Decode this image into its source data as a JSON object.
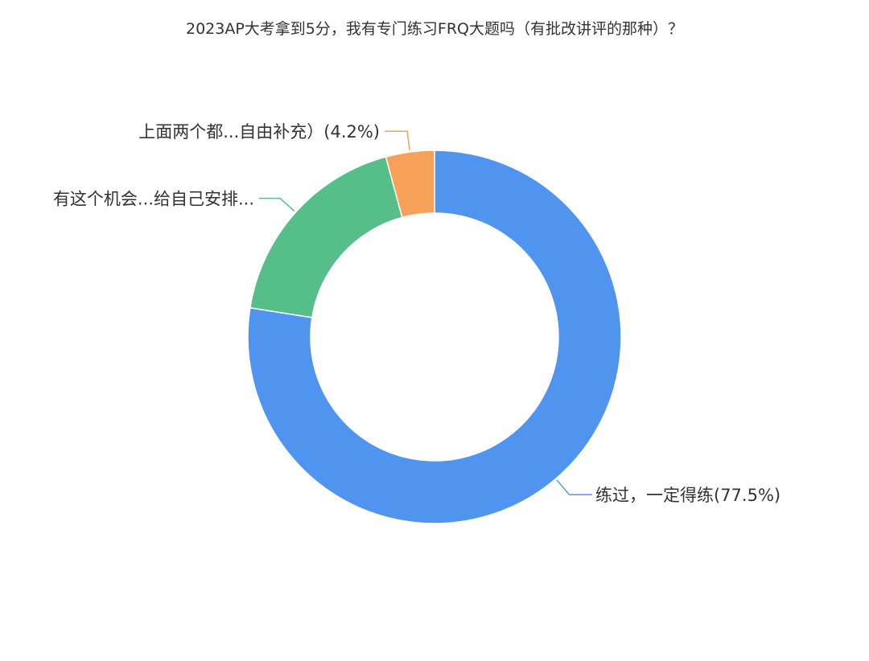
{
  "chart_data": {
    "type": "pie",
    "variant": "donut",
    "title": "2023AP大考拿到5分，我有专门练习FRQ大题吗（有批改讲评的那种）？",
    "start_angle_deg": 0,
    "direction": "clockwise",
    "slices": [
      {
        "label": "练过，一定得练(77.5%)",
        "value": 77.5,
        "color": "#4f95ef"
      },
      {
        "label": "有这个机会...给自己安排...",
        "value": 18.3,
        "color": "#56be89"
      },
      {
        "label": "上面两个都...自由补充）(4.2%)",
        "value": 4.2,
        "color": "#f6a05a"
      }
    ]
  }
}
